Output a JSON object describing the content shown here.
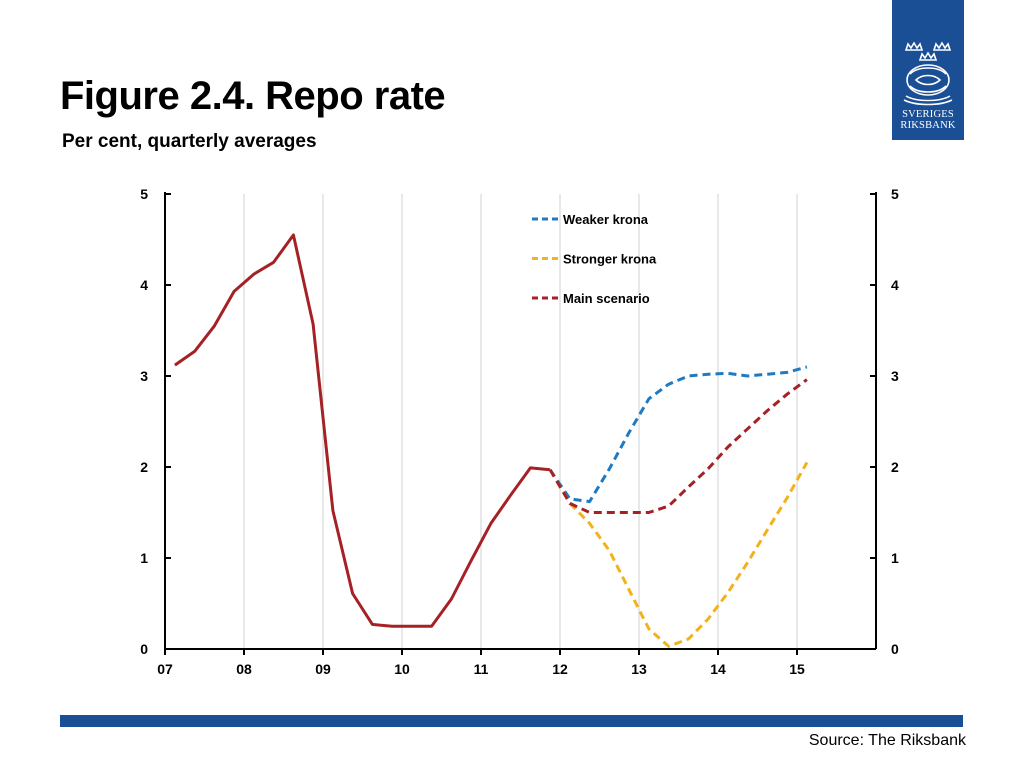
{
  "page": {
    "title": "Figure 2.4. Repo rate",
    "subtitle": "Per cent, quarterly averages",
    "source": "Source: The Riksbank",
    "bar_color": "#1a4f95"
  },
  "logo": {
    "line1": "SVERIGES",
    "line2": "RIKSBANK",
    "icon": "riksbank-crest-icon",
    "color": "#1a4f95"
  },
  "chart_data": {
    "type": "line",
    "title": "Figure 2.4. Repo rate",
    "subtitle": "Per cent, quarterly averages",
    "xlabel": "",
    "ylabel": "",
    "x_ticks": [
      "07",
      "08",
      "09",
      "10",
      "11",
      "12",
      "13",
      "14",
      "15"
    ],
    "xlim": [
      2007,
      2016
    ],
    "ylim": [
      0,
      5
    ],
    "y_ticks": [
      "0",
      "1",
      "2",
      "3",
      "4",
      "5"
    ],
    "grid": "vertical",
    "legend_position": "top-center",
    "series": [
      {
        "key": "outcome",
        "style": "solid",
        "color": "#a52126",
        "x": [
          2007.125,
          2007.375,
          2007.625,
          2007.875,
          2008.125,
          2008.375,
          2008.625,
          2008.875,
          2009.125,
          2009.375,
          2009.625,
          2009.875,
          2010.125,
          2010.375,
          2010.625,
          2010.875,
          2011.125,
          2011.375,
          2011.625,
          2011.875
        ],
        "values": [
          3.12,
          3.27,
          3.55,
          3.93,
          4.12,
          4.25,
          4.55,
          3.57,
          1.52,
          0.61,
          0.27,
          0.25,
          0.25,
          0.25,
          0.55,
          0.97,
          1.38,
          1.69,
          1.99,
          1.97
        ]
      },
      {
        "name": "Weaker krona",
        "style": "dashed",
        "color": "#1f7ac1",
        "x": [
          2011.875,
          2012.125,
          2012.375,
          2012.625,
          2012.875,
          2013.125,
          2013.375,
          2013.625,
          2013.875,
          2014.125,
          2014.375,
          2014.625,
          2014.875,
          2015.125
        ],
        "values": [
          1.97,
          1.65,
          1.62,
          1.98,
          2.38,
          2.75,
          2.91,
          3.0,
          3.02,
          3.03,
          3.0,
          3.02,
          3.04,
          3.1
        ]
      },
      {
        "name": "Stronger krona",
        "style": "dashed",
        "color": "#f2b21b",
        "x": [
          2011.875,
          2012.125,
          2012.375,
          2012.625,
          2012.875,
          2013.125,
          2013.375,
          2013.625,
          2013.875,
          2014.125,
          2014.375,
          2014.625,
          2014.875,
          2015.125
        ],
        "values": [
          1.97,
          1.6,
          1.38,
          1.08,
          0.65,
          0.22,
          0.03,
          0.11,
          0.33,
          0.62,
          0.95,
          1.31,
          1.66,
          2.05
        ]
      },
      {
        "name": "Main scenario",
        "style": "dashed",
        "color": "#a52126",
        "x": [
          2011.875,
          2012.125,
          2012.375,
          2012.625,
          2012.875,
          2013.125,
          2013.375,
          2013.625,
          2013.875,
          2014.125,
          2014.375,
          2014.625,
          2014.875,
          2015.125
        ],
        "values": [
          1.97,
          1.6,
          1.5,
          1.5,
          1.5,
          1.5,
          1.57,
          1.78,
          1.98,
          2.22,
          2.42,
          2.62,
          2.8,
          2.96
        ]
      }
    ]
  }
}
